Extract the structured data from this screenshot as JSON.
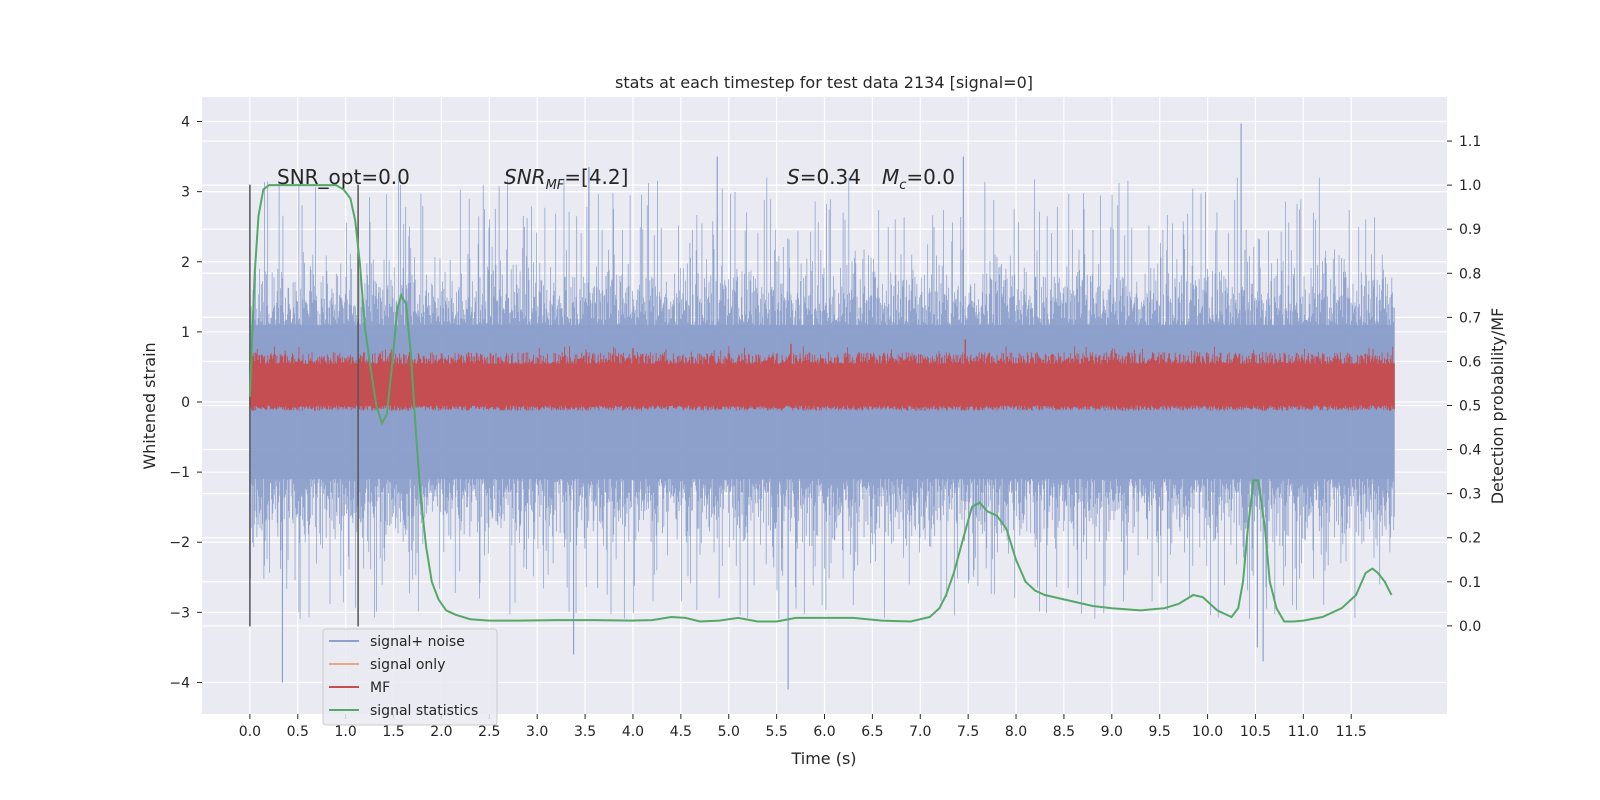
{
  "chart_data": {
    "type": "line",
    "title": "stats at each timestep for test data 2134 [signal=0]",
    "xlabel": "Time (s)",
    "ylabel_left": "Whitened strain",
    "ylabel_right": "Detection probability/MF",
    "xlim": [
      -0.5,
      12.5
    ],
    "ylim_left": [
      -4.45,
      4.35
    ],
    "ylim_right": [
      -0.2,
      1.2
    ],
    "x_ticks": [
      "0.0",
      "0.5",
      "1.0",
      "1.5",
      "2.0",
      "2.5",
      "3.0",
      "3.5",
      "4.0",
      "4.5",
      "5.0",
      "5.5",
      "6.0",
      "6.5",
      "7.0",
      "7.5",
      "8.0",
      "8.5",
      "9.0",
      "9.5",
      "10.0",
      "10.5",
      "11.0",
      "11.5"
    ],
    "y_ticks_left": [
      "4",
      "3",
      "2",
      "1",
      "0",
      "−1",
      "−2",
      "−3",
      "−4"
    ],
    "y_ticks_right": [
      "1.1",
      "1.0",
      "0.9",
      "0.8",
      "0.7",
      "0.6",
      "0.5",
      "0.4",
      "0.3",
      "0.2",
      "0.1",
      "0.0"
    ],
    "grid": true,
    "legend_position": "bottom-left",
    "annotations": {
      "snr_opt": "SNR_opt=0.0",
      "snr_mf": "=[4.2]",
      "s_value": "=0.34",
      "mc_value": "=0.0"
    },
    "vertical_markers_x": [
      0.0,
      1.13
    ],
    "vertical_markers_range": [
      -3.2,
      3.1
    ],
    "series": [
      {
        "name": "signal+ noise",
        "color": "#8da0cb",
        "axis": "left",
        "x_range": [
          0.0,
          11.95
        ],
        "amplitude_typical": [
          -1.9,
          1.9
        ],
        "extremes": [
          {
            "x": 0.34,
            "y": -4.0
          },
          {
            "x": 3.38,
            "y": -3.6
          },
          {
            "x": 5.62,
            "y": -4.1
          },
          {
            "x": 10.35,
            "y": 3.97
          },
          {
            "x": 10.52,
            "y": -3.5
          },
          {
            "x": 10.58,
            "y": -3.7
          },
          {
            "x": 3.54,
            "y": 3.35
          },
          {
            "x": 4.88,
            "y": 3.5
          },
          {
            "x": 7.45,
            "y": 3.5
          }
        ]
      },
      {
        "name": "signal only",
        "color": "#e8a88c",
        "axis": "left",
        "values": []
      },
      {
        "name": "MF",
        "color": "#c44e52",
        "axis": "right",
        "x_range": [
          0.0,
          11.95
        ],
        "band": [
          0.5,
          0.6
        ],
        "peaks": [
          {
            "x": 4.0,
            "y": 0.63
          },
          {
            "x": 5.65,
            "y": 0.64
          },
          {
            "x": 7.47,
            "y": 0.65
          },
          {
            "x": 7.72,
            "y": 0.62
          },
          {
            "x": 8.22,
            "y": 0.62
          }
        ]
      },
      {
        "name": "signal statistics",
        "color": "#55a868",
        "axis": "right",
        "x": [
          0.0,
          0.05,
          0.09,
          0.14,
          0.2,
          0.3,
          0.5,
          0.7,
          0.9,
          0.98,
          1.05,
          1.1,
          1.15,
          1.2,
          1.25,
          1.32,
          1.38,
          1.43,
          1.48,
          1.54,
          1.58,
          1.63,
          1.68,
          1.73,
          1.78,
          1.84,
          1.9,
          1.97,
          2.05,
          2.15,
          2.3,
          2.5,
          2.8,
          3.2,
          3.6,
          4.0,
          4.2,
          4.4,
          4.55,
          4.7,
          4.9,
          5.1,
          5.3,
          5.5,
          5.7,
          5.9,
          6.3,
          6.6,
          6.9,
          7.1,
          7.2,
          7.27,
          7.35,
          7.45,
          7.54,
          7.62,
          7.7,
          7.8,
          7.9,
          8.0,
          8.1,
          8.2,
          8.3,
          8.5,
          8.8,
          9.0,
          9.3,
          9.55,
          9.7,
          9.85,
          9.95,
          10.1,
          10.25,
          10.32,
          10.37,
          10.42,
          10.48,
          10.53,
          10.6,
          10.65,
          10.72,
          10.8,
          10.9,
          11.0,
          11.2,
          11.4,
          11.55,
          11.65,
          11.72,
          11.78,
          11.85,
          11.92
        ],
        "y": [
          0.52,
          0.8,
          0.93,
          0.99,
          1.0,
          1.0,
          1.0,
          1.0,
          1.0,
          0.99,
          0.97,
          0.92,
          0.82,
          0.68,
          0.6,
          0.5,
          0.46,
          0.48,
          0.58,
          0.72,
          0.75,
          0.73,
          0.62,
          0.45,
          0.3,
          0.18,
          0.1,
          0.06,
          0.035,
          0.025,
          0.015,
          0.012,
          0.012,
          0.013,
          0.013,
          0.012,
          0.013,
          0.02,
          0.018,
          0.01,
          0.012,
          0.018,
          0.01,
          0.01,
          0.018,
          0.018,
          0.018,
          0.012,
          0.01,
          0.02,
          0.04,
          0.07,
          0.12,
          0.2,
          0.27,
          0.28,
          0.26,
          0.25,
          0.22,
          0.15,
          0.1,
          0.08,
          0.07,
          0.06,
          0.045,
          0.04,
          0.035,
          0.04,
          0.05,
          0.07,
          0.065,
          0.035,
          0.02,
          0.04,
          0.1,
          0.22,
          0.33,
          0.33,
          0.22,
          0.1,
          0.04,
          0.01,
          0.01,
          0.012,
          0.02,
          0.04,
          0.07,
          0.12,
          0.13,
          0.12,
          0.1,
          0.07
        ]
      }
    ]
  }
}
